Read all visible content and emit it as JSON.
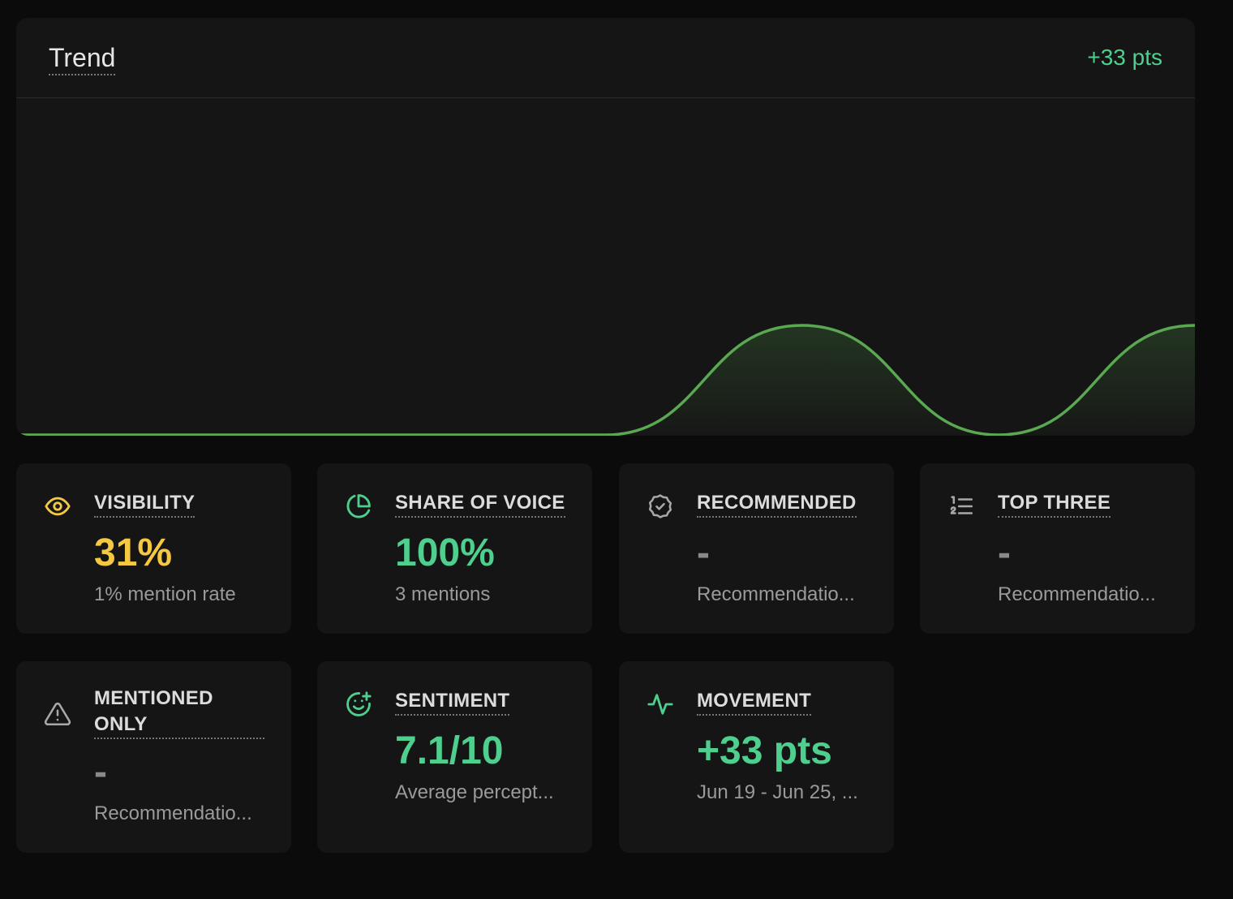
{
  "trend": {
    "title": "Trend",
    "delta": "+33 pts",
    "line_color": "#5aa852",
    "delta_color": "#4ecf8e"
  },
  "chart_data": {
    "type": "area",
    "title": "Trend",
    "xlabel": "",
    "ylabel": "",
    "grid": false,
    "legend": "none",
    "ylim": [
      0,
      36
    ],
    "x": [
      0,
      1,
      2,
      3,
      4,
      5,
      6
    ],
    "values": [
      0,
      0,
      0,
      0,
      33,
      0,
      33
    ]
  },
  "metrics": [
    {
      "label": "VISIBILITY",
      "value": "31%",
      "sub": "1% mention rate",
      "icon": "eye-icon",
      "color": "#f5c842"
    },
    {
      "label": "SHARE OF VOICE",
      "value": "100%",
      "sub": "3 mentions",
      "icon": "pie-chart-icon",
      "color": "#4ecf8e"
    },
    {
      "label": "RECOMMENDED",
      "value": "-",
      "sub": "Recommendatio...",
      "icon": "badge-check-icon",
      "color": "#8a8a8a"
    },
    {
      "label": "TOP THREE",
      "value": "-",
      "sub": "Recommendatio...",
      "icon": "list-ordered-icon",
      "color": "#8a8a8a"
    },
    {
      "label_line1": "MENTIONED",
      "label_line2": "ONLY",
      "value": "-",
      "sub": "Recommendatio...",
      "icon": "warning-triangle-icon",
      "color": "#8a8a8a"
    },
    {
      "label": "SENTIMENT",
      "value": "7.1/10",
      "sub": "Average percept...",
      "icon": "smile-plus-icon",
      "color": "#4ecf8e"
    },
    {
      "label": "MOVEMENT",
      "value": "+33 pts",
      "sub": "Jun 19 - Jun 25, ...",
      "icon": "activity-icon",
      "color": "#4ecf8e"
    }
  ]
}
